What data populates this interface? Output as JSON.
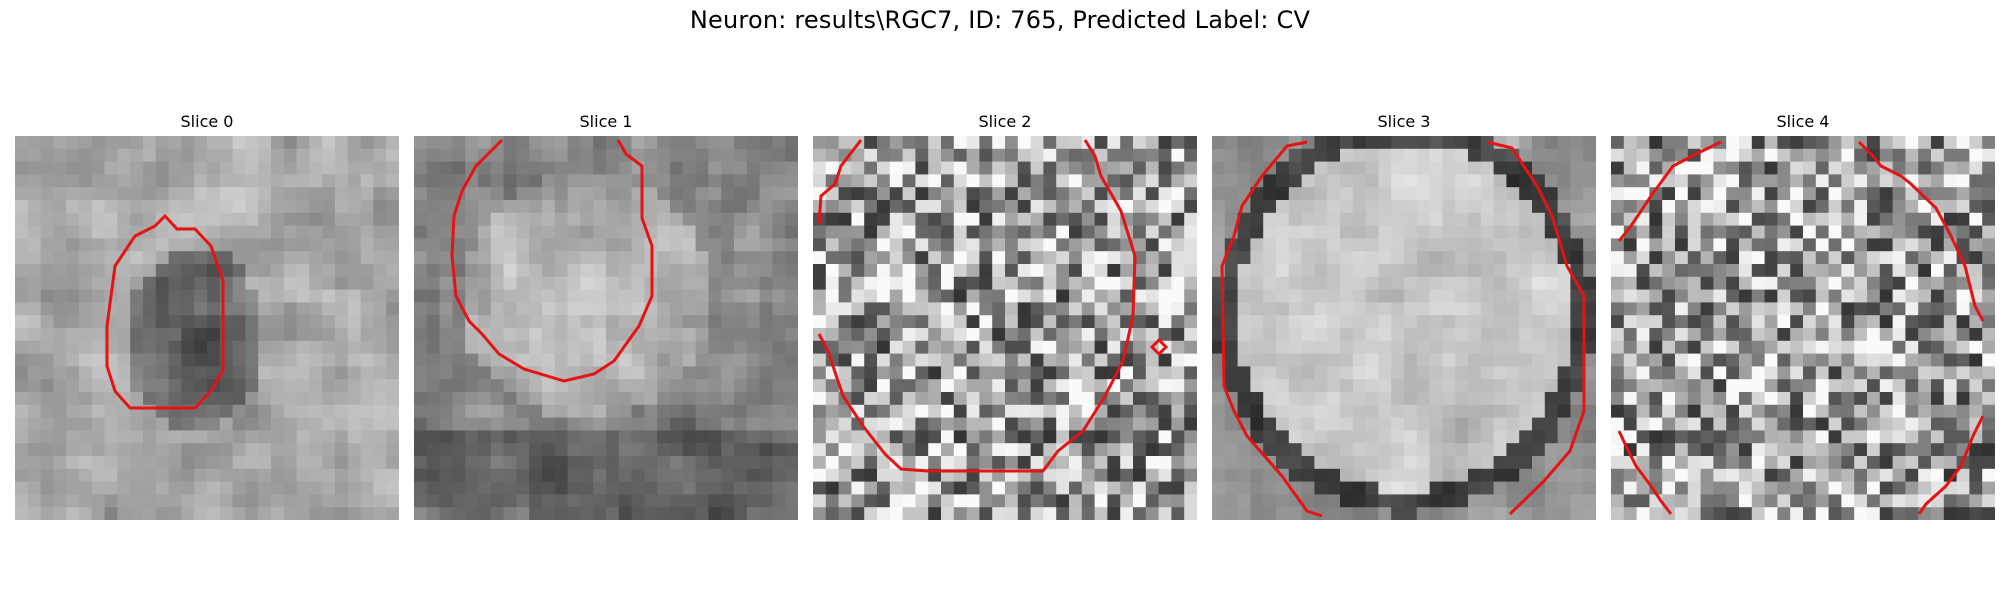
{
  "figure": {
    "title": "Neuron: results\\RGC7, ID: 765, Predicted Label: CV",
    "contour_color": "#e41414"
  },
  "panels": [
    {
      "title": "Slice 0",
      "texture": "dark-blob"
    },
    {
      "title": "Slice 1",
      "texture": "bright-upper"
    },
    {
      "title": "Slice 2",
      "texture": "speckle"
    },
    {
      "title": "Slice 3",
      "texture": "bright-disc"
    },
    {
      "title": "Slice 4",
      "texture": "speckle"
    }
  ]
}
